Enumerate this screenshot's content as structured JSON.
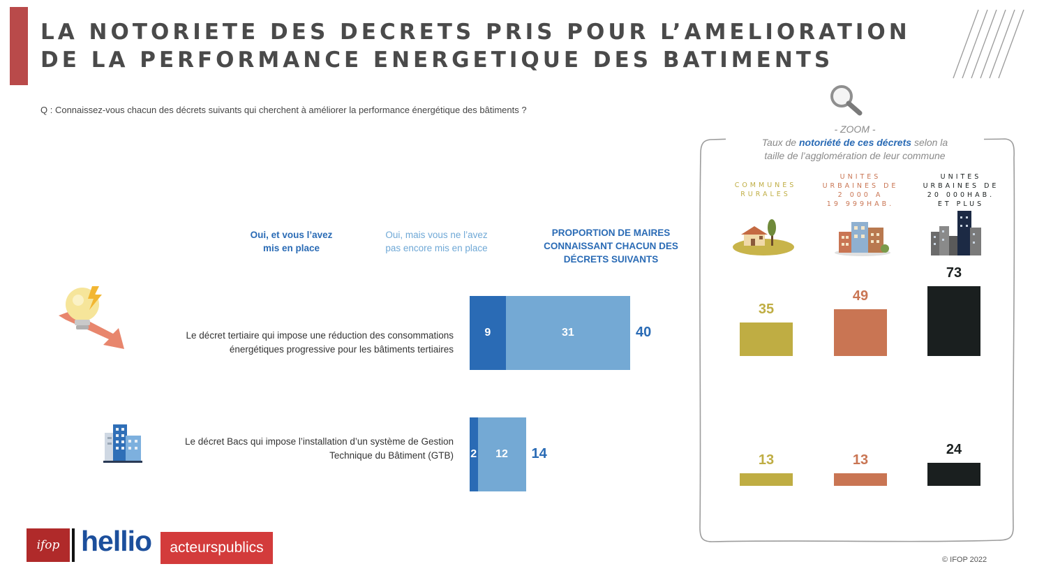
{
  "title": {
    "line1": "LA NOTORIETE DES DECRETS PRIS POUR L’AMELIORATION",
    "line2": "DE LA PERFORMANCE ENERGETIQUE DES BATIMENTS"
  },
  "question": "Q : Connaissez-vous chacun des décrets suivants qui cherchent à améliorer la performance énergétique des bâtiments ?",
  "legend": {
    "implemented": [
      "Oui, et vous l’avez",
      "mis en place"
    ],
    "not_implemented": [
      "Oui, mais vous ne l’avez",
      "pas encore mis en place"
    ],
    "proportion": [
      "PROPORTION DE MAIRES",
      "CONNAISSANT CHACUN DES",
      "DÉCRETS SUIVANTS"
    ]
  },
  "colors": {
    "dark_blue": "#2a6bb5",
    "light_blue": "#74a9d4",
    "rural": "#bfad43",
    "urban_small": "#c97553",
    "urban_large": "#1a1f1f",
    "brand_red": "#b94a4a"
  },
  "icons": [
    "lightbulb-icon",
    "building-icon",
    "magnifier-icon",
    "village-icon",
    "town-icon",
    "city-icon"
  ],
  "chart_data": [
    {
      "type": "bar",
      "orientation": "horizontal",
      "stacked": true,
      "categories": [
        [
          "Le décret tertiaire qui impose une réduction des consommations",
          "énergétiques progressive pour les bâtiments tertiaires"
        ],
        [
          "Le décret Bacs qui impose l’installation d’un système de Gestion",
          "Technique du Bâtiment (GTB)"
        ]
      ],
      "series": [
        {
          "name": "Oui, et vous l’avez mis en place",
          "values": [
            9,
            2
          ]
        },
        {
          "name": "Oui, mais vous ne l’avez pas encore mis en place",
          "values": [
            31,
            12
          ]
        }
      ],
      "totals": [
        40,
        14
      ],
      "xlim": [
        0,
        100
      ]
    },
    {
      "type": "bar",
      "title": [
        "- ZOOM -",
        "Taux de",
        "notoriété de ces décrets",
        "selon la",
        "taille de l’agglomération de leur commune"
      ],
      "columns": [
        [
          "COMMUNES",
          "RURALES"
        ],
        [
          "UNITES",
          "URBAINES DE",
          "2 000 A",
          "19 999HAB."
        ],
        [
          "UNITES",
          "URBAINES DE",
          "20 000HAB.",
          "ET PLUS"
        ]
      ],
      "rows": [
        {
          "values": [
            35,
            49,
            73
          ]
        },
        {
          "values": [
            13,
            13,
            24
          ]
        }
      ],
      "ylim": [
        0,
        80
      ]
    }
  ],
  "footer": {
    "logo_ifop": "ifop",
    "logo_hellio": "hellio",
    "logo_acteurs": "acteurspublics",
    "copyright": "© IFOP 2022"
  }
}
